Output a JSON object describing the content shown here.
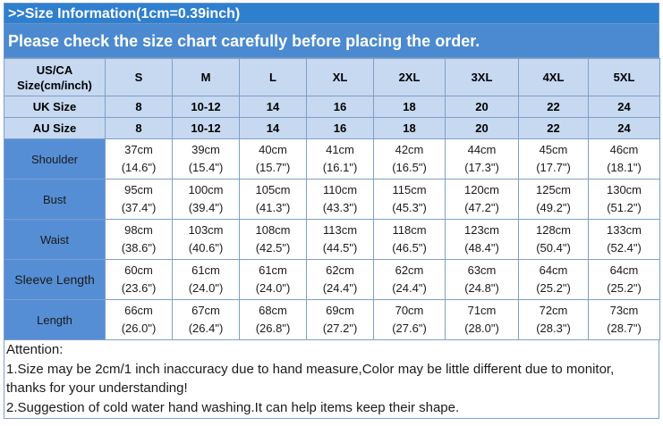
{
  "header": {
    "title": ">>Size Information(1cm=0.39inch)",
    "notice": "Please check the size chart carefully before placing the order."
  },
  "table": {
    "corner_line1": "US/CA",
    "corner_line2": "Size(cm/inch)",
    "sizes": [
      "S",
      "M",
      "L",
      "XL",
      "2XL",
      "3XL",
      "4XL",
      "5XL"
    ],
    "uk_label": "UK Size",
    "uk": [
      "8",
      "10-12",
      "14",
      "16",
      "18",
      "20",
      "22",
      "24"
    ],
    "au_label": "AU Size",
    "au": [
      "8",
      "10-12",
      "14",
      "16",
      "18",
      "20",
      "22",
      "24"
    ],
    "rows": [
      {
        "label": "Shoulder",
        "cm": [
          "37cm",
          "39cm",
          "40cm",
          "41cm",
          "42cm",
          "44cm",
          "45cm",
          "46cm"
        ],
        "inch": [
          "(14.6\")",
          "(15.4\")",
          "(15.7\")",
          "(16.1\")",
          "(16.5\")",
          "(17.3\")",
          "(17.7\")",
          "(18.1\")"
        ]
      },
      {
        "label": "Bust",
        "cm": [
          "95cm",
          "100cm",
          "105cm",
          "110cm",
          "115cm",
          "120cm",
          "125cm",
          "130cm"
        ],
        "inch": [
          "(37.4\")",
          "(39.4\")",
          "(41.3\")",
          "(43.3\")",
          "(45.3\")",
          "(47.2\")",
          "(49.2\")",
          "(51.2\")"
        ]
      },
      {
        "label": "Waist",
        "cm": [
          "98cm",
          "103cm",
          "108cm",
          "113cm",
          "118cm",
          "123cm",
          "128cm",
          "133cm"
        ],
        "inch": [
          "(38.6\")",
          "(40.6\")",
          "(42.5\")",
          "(44.5\")",
          "(46.5\")",
          "(48.4\")",
          "(50.4\")",
          "(52.4\")"
        ]
      },
      {
        "label": "Sleeve Length",
        "cm": [
          "60cm",
          "61cm",
          "61cm",
          "62cm",
          "62cm",
          "63cm",
          "64cm",
          "64cm"
        ],
        "inch": [
          "(23.6\")",
          "(24.0\")",
          "(24.0\")",
          "(24.4\")",
          "(24.4\")",
          "(24.8\")",
          "(25.2\")",
          "(25.2\")"
        ]
      },
      {
        "label": "Length",
        "cm": [
          "66cm",
          "67cm",
          "68cm",
          "69cm",
          "70cm",
          "71cm",
          "72cm",
          "73cm"
        ],
        "inch": [
          "(26.0\")",
          "(26.4\")",
          "(26.8\")",
          "(27.2\")",
          "(27.6\")",
          "(28.0\")",
          "(28.3\")",
          "(28.7\")"
        ]
      }
    ]
  },
  "notes": {
    "heading": "Attention:",
    "line1": "1.Size may be 2cm/1 inch inaccuracy due to hand measure,Color may be little different due to monitor,",
    "line2": "thanks for your understanding!",
    "line3": "2.Suggestion of cold water hand washing.It can help items keep their shape."
  },
  "colors": {
    "title_bg": "#2f7fcf",
    "notice_bg": "#4b8ad0",
    "header_row_bg": "#c6d9f1",
    "label_col_bg": "#558ed5"
  }
}
